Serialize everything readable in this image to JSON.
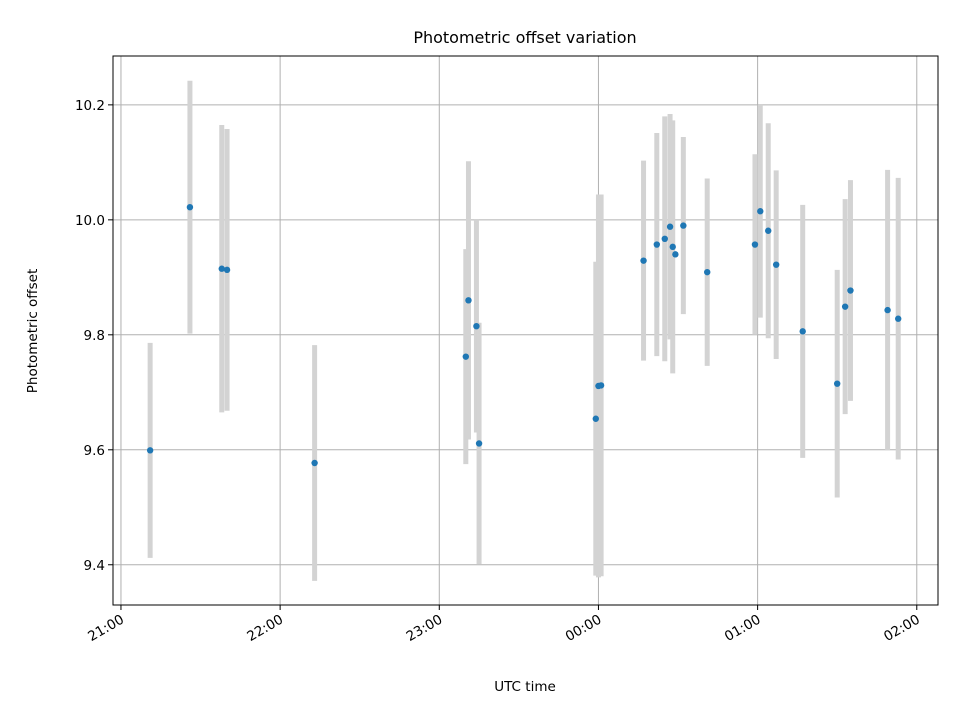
{
  "chart_data": {
    "type": "scatter",
    "title": "Photometric offset variation",
    "xlabel": "UTC time",
    "ylabel": "Photometric offset",
    "x_tick_labels": [
      "21:00",
      "22:00",
      "23:00",
      "00:00",
      "01:00",
      "02:00"
    ],
    "y_tick_labels": [
      "9.4",
      "9.6",
      "9.8",
      "10.0",
      "10.2"
    ],
    "x_axis_format": "HH:MM",
    "xlim": [
      "20:57",
      "02:08"
    ],
    "ylim": [
      9.33,
      10.285
    ],
    "grid": true,
    "colors": {
      "point": "#1f77b4",
      "errorbar": "#d3d3d3"
    },
    "series": [
      {
        "points": [
          {
            "time": "21:11",
            "y": 9.599,
            "err": 0.187
          },
          {
            "time": "21:26",
            "y": 10.022,
            "err": 0.22
          },
          {
            "time": "21:38",
            "y": 9.915,
            "err": 0.25
          },
          {
            "time": "21:40",
            "y": 9.913,
            "err": 0.245
          },
          {
            "time": "22:13",
            "y": 9.577,
            "err": 0.205
          },
          {
            "time": "23:10",
            "y": 9.762,
            "err": 0.187
          },
          {
            "time": "23:11",
            "y": 9.86,
            "err": 0.242
          },
          {
            "time": "23:14",
            "y": 9.815,
            "err": 0.185
          },
          {
            "time": "23:15",
            "y": 9.611,
            "err": 0.21
          },
          {
            "time": "23:59",
            "y": 9.654,
            "err": 0.273
          },
          {
            "time": "00:00",
            "y": 9.711,
            "err": 0.333
          },
          {
            "time": "00:01",
            "y": 9.712,
            "err": 0.332
          },
          {
            "time": "00:17",
            "y": 9.929,
            "err": 0.174
          },
          {
            "time": "00:22",
            "y": 9.957,
            "err": 0.194
          },
          {
            "time": "00:25",
            "y": 9.967,
            "err": 0.213
          },
          {
            "time": "00:27",
            "y": 9.988,
            "err": 0.196
          },
          {
            "time": "00:28",
            "y": 9.953,
            "err": 0.22
          },
          {
            "time": "00:29",
            "y": 9.94,
            "err": 0.0
          },
          {
            "time": "00:32",
            "y": 9.99,
            "err": 0.154
          },
          {
            "time": "00:41",
            "y": 9.909,
            "err": 0.163
          },
          {
            "time": "00:59",
            "y": 9.957,
            "err": 0.157
          },
          {
            "time": "01:01",
            "y": 10.015,
            "err": 0.185
          },
          {
            "time": "01:04",
            "y": 9.981,
            "err": 0.187
          },
          {
            "time": "01:07",
            "y": 9.922,
            "err": 0.164
          },
          {
            "time": "01:17",
            "y": 9.806,
            "err": 0.22
          },
          {
            "time": "01:30",
            "y": 9.715,
            "err": 0.198
          },
          {
            "time": "01:33",
            "y": 9.849,
            "err": 0.187
          },
          {
            "time": "01:35",
            "y": 9.877,
            "err": 0.192
          },
          {
            "time": "01:49",
            "y": 9.843,
            "err": 0.244
          },
          {
            "time": "01:53",
            "y": 9.828,
            "err": 0.245
          }
        ]
      }
    ]
  }
}
